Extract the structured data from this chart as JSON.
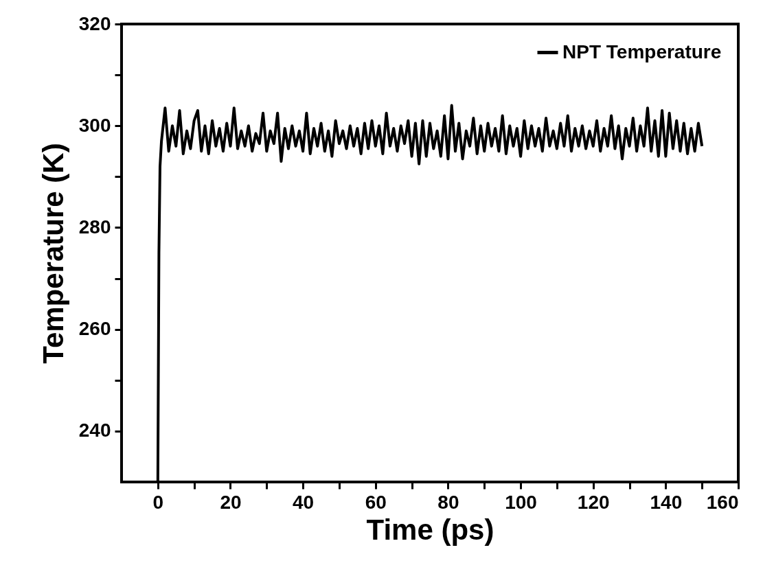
{
  "chart_data": {
    "type": "line",
    "xlabel": "Time (ps)",
    "ylabel": "Temperature (K)",
    "xlim": [
      -10,
      160
    ],
    "ylim": [
      230,
      320
    ],
    "xticks": [
      0,
      {
        "value": 10,
        "label": null
      },
      20,
      {
        "value": 30,
        "label": null
      },
      40,
      {
        "value": 50,
        "label": null
      },
      60,
      {
        "value": 70,
        "label": null
      },
      80,
      {
        "value": 90,
        "label": null
      },
      100,
      {
        "value": 110,
        "label": null
      },
      120,
      {
        "value": 130,
        "label": null
      },
      140,
      {
        "value": 150,
        "label": null
      },
      160
    ],
    "yticks": [
      240,
      {
        "value": 250,
        "label": null
      },
      260,
      {
        "value": 270,
        "label": null
      },
      280,
      {
        "value": 290,
        "label": null
      },
      300,
      {
        "value": 310,
        "label": null
      },
      320
    ],
    "grid": false,
    "legend": "top right",
    "marker": "none",
    "line_style": "solid",
    "x": [
      0,
      0.3,
      0.6,
      1,
      2,
      3,
      4,
      5,
      6,
      7,
      8,
      9,
      10,
      11,
      12,
      13,
      14,
      15,
      16,
      17,
      18,
      19,
      20,
      21,
      22,
      23,
      24,
      25,
      26,
      27,
      28,
      29,
      30,
      31,
      32,
      33,
      34,
      35,
      36,
      37,
      38,
      39,
      40,
      41,
      42,
      43,
      44,
      45,
      46,
      47,
      48,
      49,
      50,
      51,
      52,
      53,
      54,
      55,
      56,
      57,
      58,
      59,
      60,
      61,
      62,
      63,
      64,
      65,
      66,
      67,
      68,
      69,
      70,
      71,
      72,
      73,
      74,
      75,
      76,
      77,
      78,
      79,
      80,
      81,
      82,
      83,
      84,
      85,
      86,
      87,
      88,
      89,
      90,
      91,
      92,
      93,
      94,
      95,
      96,
      97,
      98,
      99,
      100,
      101,
      102,
      103,
      104,
      105,
      106,
      107,
      108,
      109,
      110,
      111,
      112,
      113,
      114,
      115,
      116,
      117,
      118,
      119,
      120,
      121,
      122,
      123,
      124,
      125,
      126,
      127,
      128,
      129,
      130,
      131,
      132,
      133,
      134,
      135,
      136,
      137,
      138,
      139,
      140,
      141,
      142,
      143,
      144,
      145,
      146,
      147,
      148,
      149,
      150
    ],
    "series": [
      {
        "name": "NPT Temperature",
        "color": "#000000",
        "values": [
          230,
          275,
          292,
          297,
          303.5,
          295,
          300,
          296,
          303,
          294.5,
          299,
          295.5,
          301,
          303,
          295,
          300,
          294.5,
          301,
          296,
          299.5,
          295,
          300.5,
          296,
          303.5,
          295.5,
          299,
          296,
          300,
          295,
          298.5,
          296.5,
          302.5,
          295,
          299,
          296.5,
          302.5,
          293,
          299.5,
          295.5,
          300,
          296,
          299,
          295,
          302.5,
          294.5,
          299.5,
          296,
          300.5,
          295,
          299,
          294,
          301,
          296.5,
          299,
          295.5,
          300,
          296,
          299.5,
          294.5,
          300.5,
          295.5,
          301,
          296,
          300,
          294.5,
          302.5,
          296,
          299.5,
          295,
          300,
          296.5,
          301,
          294,
          300.5,
          292.5,
          301,
          294,
          300.5,
          295.5,
          299,
          294,
          302,
          293.5,
          304,
          295,
          300.5,
          293.5,
          299,
          296,
          301.5,
          294.5,
          300,
          295,
          300.5,
          296,
          299.5,
          295,
          302,
          294.5,
          300,
          296,
          299.5,
          294,
          301,
          295.5,
          300,
          296,
          299.5,
          295,
          301.5,
          296,
          299,
          295.5,
          300.5,
          296,
          302,
          295,
          299.5,
          296,
          300,
          295.5,
          299,
          296,
          301,
          295,
          299.5,
          296,
          302,
          295.5,
          300,
          293.5,
          299.5,
          296,
          301.5,
          295,
          300,
          296,
          303.5,
          295,
          301,
          294,
          303,
          294,
          302.5,
          295.5,
          301,
          295,
          300.5,
          294.5,
          299.5,
          295,
          300.5,
          296
        ]
      }
    ]
  }
}
